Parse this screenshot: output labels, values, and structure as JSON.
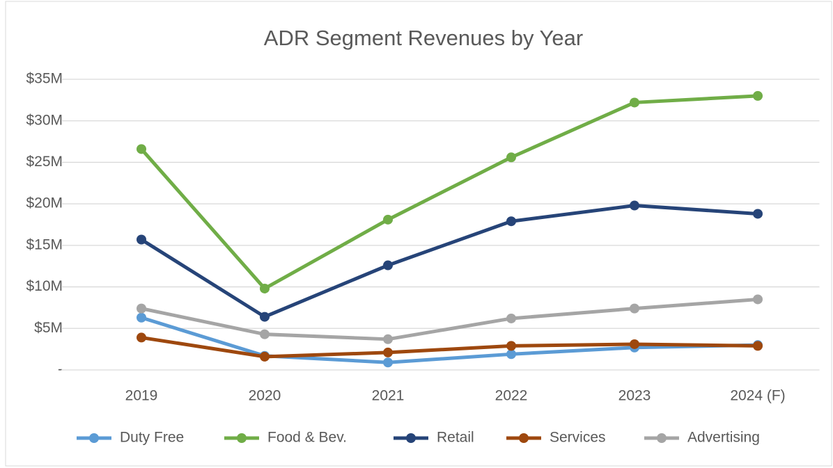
{
  "chart_data": {
    "type": "line",
    "title": "ADR Segment Revenues by Year",
    "categories": [
      "2019",
      "2020",
      "2021",
      "2022",
      "2023",
      "2024 (F)"
    ],
    "series": [
      {
        "name": "Duty Free",
        "color": "#5b9bd5",
        "values": [
          6.3,
          1.7,
          0.9,
          1.9,
          2.7,
          3.0
        ]
      },
      {
        "name": "Food & Bev.",
        "color": "#70ad47",
        "values": [
          26.6,
          9.8,
          18.1,
          25.6,
          32.2,
          33.0
        ]
      },
      {
        "name": "Retail",
        "color": "#264478",
        "values": [
          15.7,
          6.4,
          12.6,
          17.9,
          19.8,
          18.8
        ]
      },
      {
        "name": "Services",
        "color": "#9e480e",
        "values": [
          3.9,
          1.6,
          2.1,
          2.9,
          3.1,
          2.9
        ]
      },
      {
        "name": "Advertising",
        "color": "#a5a5a5",
        "values": [
          7.4,
          4.3,
          3.7,
          6.2,
          7.4,
          8.5
        ]
      }
    ],
    "ylim": [
      0,
      35
    ],
    "yticks": [
      {
        "value": 0,
        "label": "-"
      },
      {
        "value": 5,
        "label": "$5M"
      },
      {
        "value": 10,
        "label": "$10M"
      },
      {
        "value": 15,
        "label": "$15M"
      },
      {
        "value": 20,
        "label": "$20M"
      },
      {
        "value": 25,
        "label": "$25M"
      },
      {
        "value": 30,
        "label": "$30M"
      },
      {
        "value": 35,
        "label": "$35M"
      }
    ],
    "grid": true,
    "legend": "bottom"
  }
}
